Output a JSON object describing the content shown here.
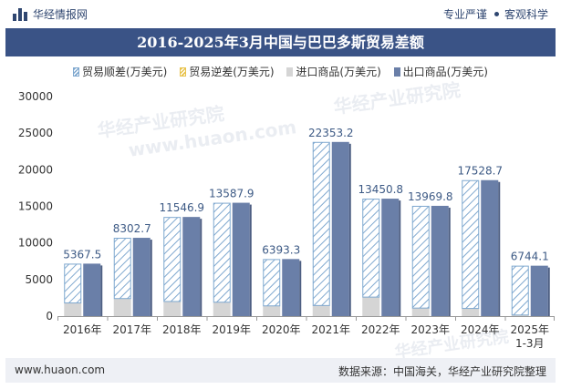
{
  "header": {
    "brand": "华经情报网",
    "tag1": "专业严谨",
    "tag2": "客观科学"
  },
  "watermark": {
    "line1": "华经产业研究院",
    "line2": "www.huaon.com"
  },
  "footer": {
    "url": "www.huaon.com",
    "source": "数据来源：中国海关，华经产业研究院整理"
  },
  "colors": {
    "trade_surplus": "#7fa8cf",
    "trade_deficit": "#e8c24a",
    "import": "#d5d5d5",
    "export": "#6a7fa8",
    "title_bg": "#3a5386"
  },
  "chart_data": {
    "type": "bar",
    "title": "2016-2025年3月中国与巴巴多斯贸易差额",
    "categories": [
      "2016年",
      "2017年",
      "2018年",
      "2019年",
      "2020年",
      "2021年",
      "2022年",
      "2023年",
      "2024年",
      "2025年1-3月"
    ],
    "series": [
      {
        "name": "贸易顺差(万美元)",
        "values": [
          5367.5,
          8302.7,
          11546.9,
          13587.9,
          6393.3,
          22353.2,
          13450.8,
          13969.8,
          17528.7,
          6744.1
        ]
      },
      {
        "name": "贸易逆差(万美元)",
        "values": [
          null,
          null,
          null,
          null,
          null,
          null,
          null,
          null,
          null,
          null
        ]
      },
      {
        "name": "进口商品(万美元)",
        "values": [
          1800,
          2400,
          2000,
          1900,
          1400,
          1450,
          2600,
          1100,
          1050,
          150
        ]
      },
      {
        "name": "出口商品(万美元)",
        "values": [
          7170,
          10700,
          13550,
          15490,
          7800,
          23800,
          16050,
          15070,
          18580,
          6890
        ]
      }
    ],
    "ylim": [
      0,
      30000
    ],
    "yticks": [
      0,
      5000,
      10000,
      15000,
      20000,
      25000,
      30000
    ],
    "grid": false,
    "legend_position": "top"
  }
}
